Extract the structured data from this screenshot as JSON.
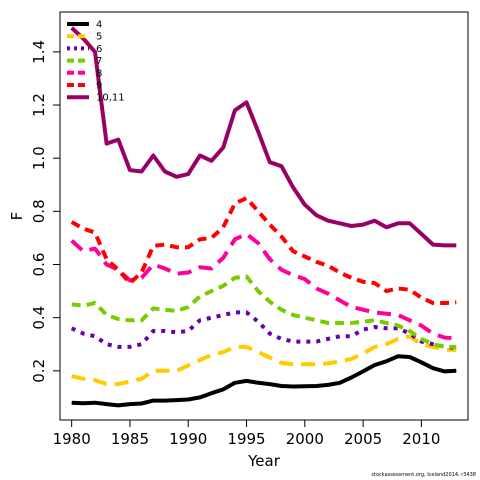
{
  "chart_data": {
    "type": "line",
    "title": "",
    "xlabel": "Year",
    "ylabel": "F",
    "xlim": [
      1979,
      2014
    ],
    "ylim": [
      0.015,
      1.55
    ],
    "x_ticks": [
      1980,
      1985,
      1990,
      1995,
      2000,
      2005,
      2010
    ],
    "y_ticks": [
      0.2,
      0.4,
      0.6,
      0.8,
      1.0,
      1.2,
      1.4
    ],
    "y_tick_labels": [
      "0.2",
      "0.4",
      "0.6",
      "0.8",
      "1.0",
      "1.2",
      "1.4"
    ],
    "grid": false,
    "legend_position": "top-left",
    "credit": "stockassessment.org, Iceland2014, r3438",
    "x": [
      1980,
      1981,
      1982,
      1983,
      1984,
      1985,
      1986,
      1987,
      1988,
      1989,
      1990,
      1991,
      1992,
      1993,
      1994,
      1995,
      1996,
      1997,
      1998,
      1999,
      2000,
      2001,
      2002,
      2003,
      2004,
      2005,
      2006,
      2007,
      2008,
      2009,
      2010,
      2011,
      2012,
      2013
    ],
    "series": [
      {
        "name": "4",
        "color": "#000000",
        "dash": "solid",
        "values": [
          0.08,
          0.078,
          0.08,
          0.075,
          0.07,
          0.075,
          0.077,
          0.088,
          0.088,
          0.09,
          0.092,
          0.1,
          0.116,
          0.13,
          0.155,
          0.162,
          0.155,
          0.15,
          0.143,
          0.141,
          0.142,
          0.143,
          0.147,
          0.155,
          0.175,
          0.198,
          0.222,
          0.236,
          0.255,
          0.252,
          0.232,
          0.21,
          0.198,
          0.2
        ]
      },
      {
        "name": "5",
        "color": "#ffcc00",
        "dash": "long",
        "values": [
          0.18,
          0.17,
          0.165,
          0.15,
          0.15,
          0.16,
          0.17,
          0.2,
          0.2,
          0.2,
          0.22,
          0.24,
          0.26,
          0.27,
          0.29,
          0.29,
          0.27,
          0.25,
          0.23,
          0.225,
          0.225,
          0.225,
          0.228,
          0.235,
          0.245,
          0.265,
          0.29,
          0.3,
          0.32,
          0.33,
          0.3,
          0.29,
          0.28,
          0.278
        ]
      },
      {
        "name": "6",
        "color": "#6600aa",
        "dash": "dot",
        "values": [
          0.36,
          0.34,
          0.33,
          0.3,
          0.29,
          0.29,
          0.3,
          0.35,
          0.35,
          0.345,
          0.35,
          0.39,
          0.4,
          0.41,
          0.42,
          0.42,
          0.385,
          0.34,
          0.32,
          0.31,
          0.31,
          0.31,
          0.32,
          0.33,
          0.33,
          0.355,
          0.365,
          0.36,
          0.36,
          0.34,
          0.31,
          0.3,
          0.29,
          0.285
        ]
      },
      {
        "name": "7",
        "color": "#77cc00",
        "dash": "short",
        "values": [
          0.45,
          0.445,
          0.455,
          0.41,
          0.395,
          0.39,
          0.39,
          0.435,
          0.43,
          0.425,
          0.44,
          0.48,
          0.5,
          0.52,
          0.55,
          0.555,
          0.5,
          0.46,
          0.43,
          0.41,
          0.4,
          0.39,
          0.38,
          0.38,
          0.38,
          0.385,
          0.39,
          0.38,
          0.37,
          0.35,
          0.32,
          0.3,
          0.29,
          0.29
        ]
      },
      {
        "name": "8",
        "color": "#ff0099",
        "dash": "long",
        "values": [
          0.69,
          0.65,
          0.66,
          0.6,
          0.58,
          0.54,
          0.55,
          0.6,
          0.585,
          0.565,
          0.57,
          0.59,
          0.585,
          0.625,
          0.695,
          0.715,
          0.68,
          0.62,
          0.58,
          0.56,
          0.545,
          0.51,
          0.49,
          0.465,
          0.44,
          0.43,
          0.42,
          0.415,
          0.41,
          0.39,
          0.37,
          0.34,
          0.325,
          0.322
        ]
      },
      {
        "name": "9",
        "color": "#ff0000",
        "dash": "short",
        "values": [
          0.76,
          0.735,
          0.72,
          0.62,
          0.58,
          0.53,
          0.57,
          0.67,
          0.675,
          0.665,
          0.665,
          0.695,
          0.7,
          0.74,
          0.83,
          0.85,
          0.8,
          0.75,
          0.705,
          0.65,
          0.63,
          0.61,
          0.595,
          0.57,
          0.55,
          0.535,
          0.53,
          0.5,
          0.51,
          0.505,
          0.475,
          0.455,
          0.455,
          0.458
        ]
      },
      {
        "name": "10,11",
        "color": "#990066",
        "dash": "solid",
        "values": [
          1.49,
          1.45,
          1.4,
          1.055,
          1.07,
          0.955,
          0.95,
          1.01,
          0.95,
          0.93,
          0.94,
          1.01,
          0.99,
          1.04,
          1.18,
          1.21,
          1.1,
          0.985,
          0.97,
          0.89,
          0.825,
          0.785,
          0.765,
          0.755,
          0.745,
          0.75,
          0.765,
          0.74,
          0.755,
          0.755,
          0.715,
          0.675,
          0.672,
          0.672
        ]
      }
    ]
  }
}
